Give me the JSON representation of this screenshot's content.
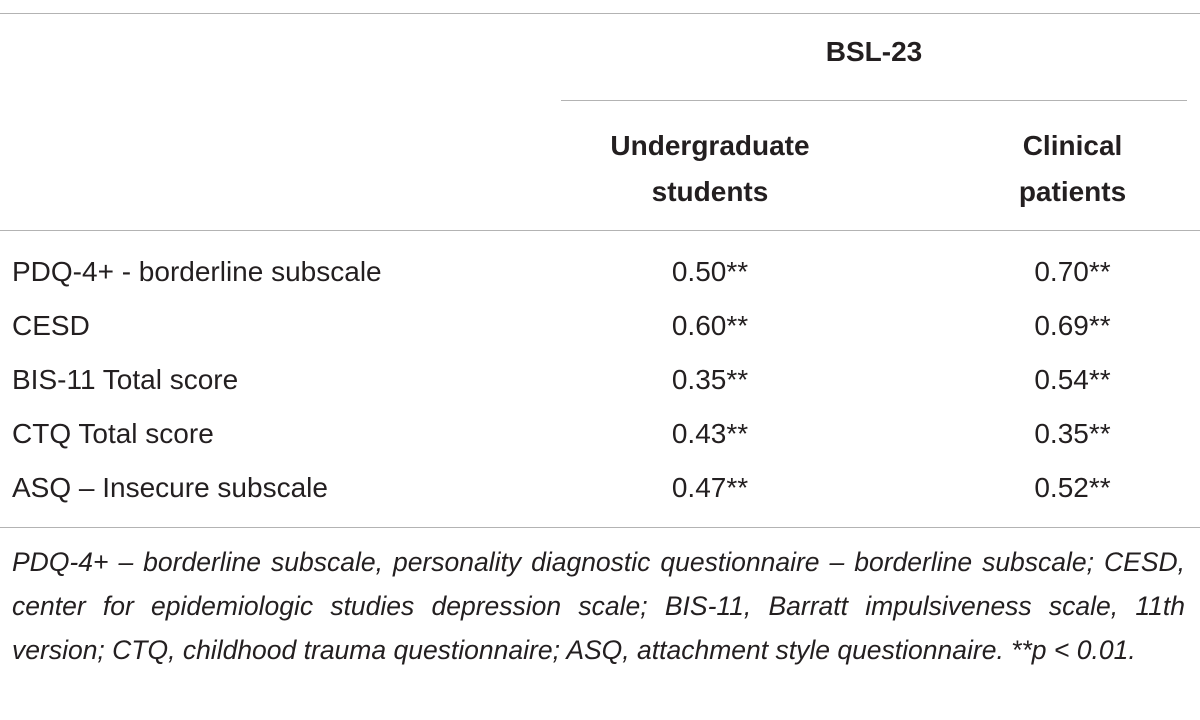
{
  "table": {
    "group_header": "BSL-23",
    "columns": [
      "Undergraduate\nstudents",
      "Clinical\npatients"
    ],
    "rows": [
      {
        "label": "PDQ-4+ - borderline subscale",
        "undergraduate": "0.50**",
        "clinical": "0.70**"
      },
      {
        "label": "CESD",
        "undergraduate": "0.60**",
        "clinical": "0.69**"
      },
      {
        "label": "BIS-11 Total score",
        "undergraduate": "0.35**",
        "clinical": "0.54**"
      },
      {
        "label": "CTQ Total score",
        "undergraduate": "0.43**",
        "clinical": "0.35**"
      },
      {
        "label": "ASQ – Insecure subscale",
        "undergraduate": "0.47**",
        "clinical": "0.52**"
      }
    ],
    "footnote": "PDQ-4+ – borderline subscale, personality diagnostic questionnaire – borderline subscale; CESD, center for epidemiologic studies depression scale; BIS-11, Barratt impulsiveness scale, 11th version; CTQ, childhood trauma questionnaire; ASQ, attachment style questionnaire. **p < 0.01."
  }
}
